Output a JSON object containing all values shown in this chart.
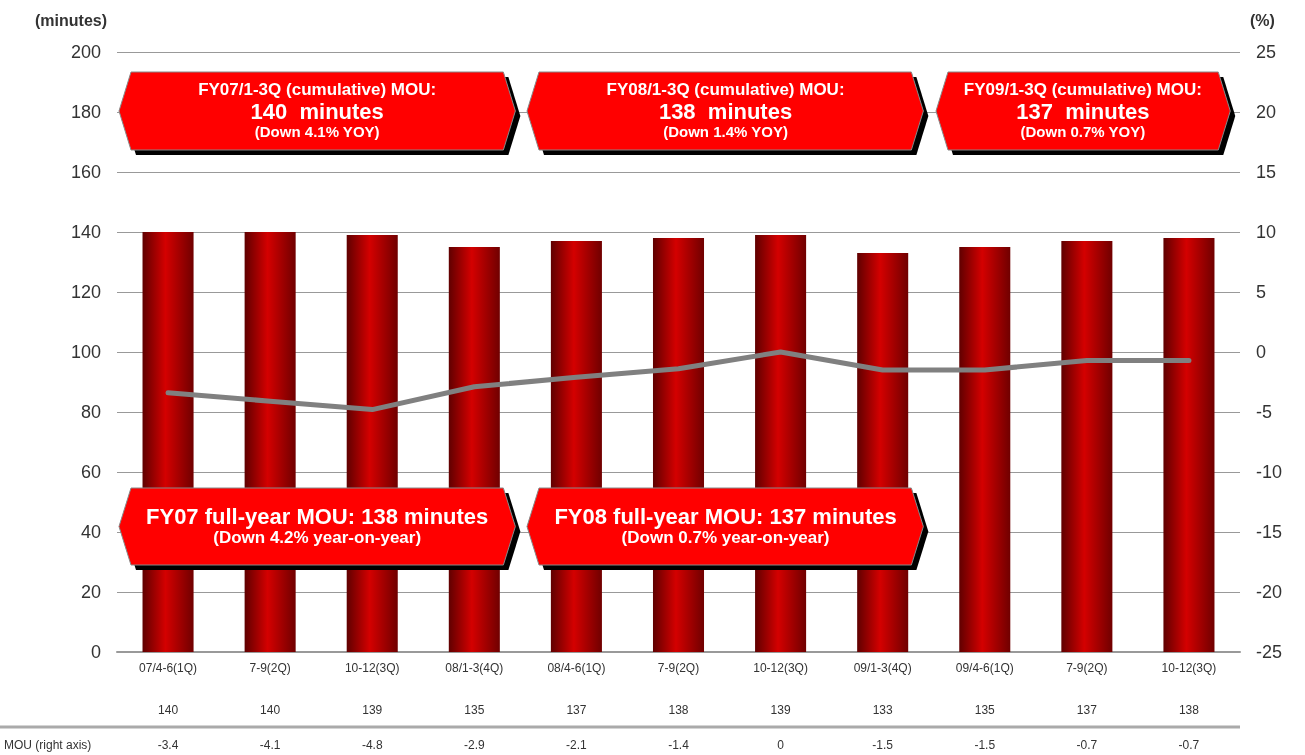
{
  "chart_data": {
    "type": "bar",
    "ylabel": "(minutes)",
    "y2label": "(%)",
    "categories": [
      "07/4-6(1Q)",
      "7-9(2Q)",
      "10-12(3Q)",
      "08/1-3(4Q)",
      "08/4-6(1Q)",
      "7-9(2Q)",
      "10-12(3Q)",
      "09/1-3(4Q)",
      "09/4-6(1Q)",
      "7-9(2Q)",
      "10-12(3Q)"
    ],
    "series": [
      {
        "color": "#d40000",
        "values": [
          140,
          140,
          139,
          135,
          137,
          138,
          139,
          133,
          135,
          137,
          138
        ]
      },
      {
        "name": "MOU (right axis)",
        "type": "line",
        "axis": "y2",
        "color": "#808080",
        "values": [
          -3.4,
          -4.1,
          -4.8,
          -2.9,
          -2.1,
          -1.4,
          0,
          -1.5,
          -1.5,
          -0.7,
          -0.7
        ]
      }
    ],
    "ylim": [
      0,
      200
    ],
    "yticks": [
      0,
      20,
      40,
      60,
      80,
      100,
      120,
      140,
      160,
      180,
      200
    ],
    "y2lim": [
      -25,
      25
    ],
    "y2ticks": [
      -25,
      -20,
      -15,
      -10,
      -5,
      0,
      5,
      10,
      15,
      20,
      25
    ],
    "grid": "y",
    "legend": false,
    "marker": "none",
    "line_style": "solid",
    "data_labels": true,
    "annotations": [
      "FY07/1-3Q (cumulative) MOU:\n140  minutes\n(Down 4.1% YOY)",
      "FY08/1-3Q (cumulative) MOU:\n138  minutes\n(Down 1.4% YOY)",
      "FY09/1-3Q (cumulative) MOU:\n137  minutes\n(Down 0.7% YOY)",
      "FY07 full-year MOU: 138 minutes\n(Down 4.2% year-on-year)",
      "FY08 full-year MOU: 137 minutes\n(Down 0.7% year-on-year)"
    ]
  }
}
